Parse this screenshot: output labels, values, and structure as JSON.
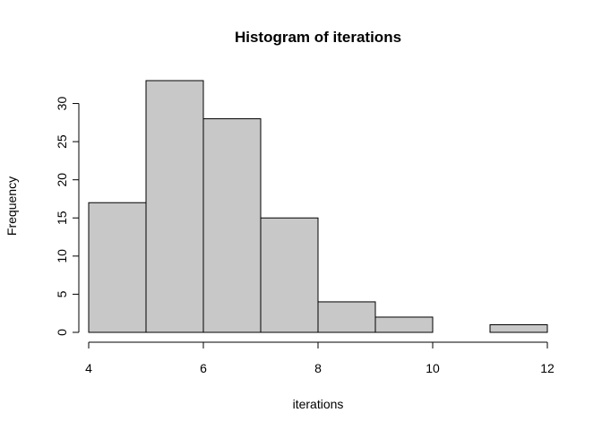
{
  "chart_data": {
    "type": "bar",
    "subtype": "histogram",
    "title": "Histogram of iterations",
    "xlabel": "iterations",
    "ylabel": "Frequency",
    "bins": [
      {
        "from": 4,
        "to": 5,
        "count": 17
      },
      {
        "from": 5,
        "to": 6,
        "count": 33
      },
      {
        "from": 6,
        "to": 7,
        "count": 28
      },
      {
        "from": 7,
        "to": 8,
        "count": 15
      },
      {
        "from": 8,
        "to": 9,
        "count": 4
      },
      {
        "from": 9,
        "to": 10,
        "count": 2
      },
      {
        "from": 10,
        "to": 11,
        "count": 0
      },
      {
        "from": 11,
        "to": 12,
        "count": 1
      }
    ],
    "xlim": [
      4,
      12
    ],
    "ylim": [
      0,
      33
    ],
    "x_ticks": [
      4,
      6,
      8,
      10,
      12
    ],
    "y_ticks": [
      0,
      5,
      10,
      15,
      20,
      25,
      30
    ],
    "bar_fill": "#c8c8c8",
    "bar_stroke": "#000000",
    "grid": false,
    "legend": "none"
  }
}
